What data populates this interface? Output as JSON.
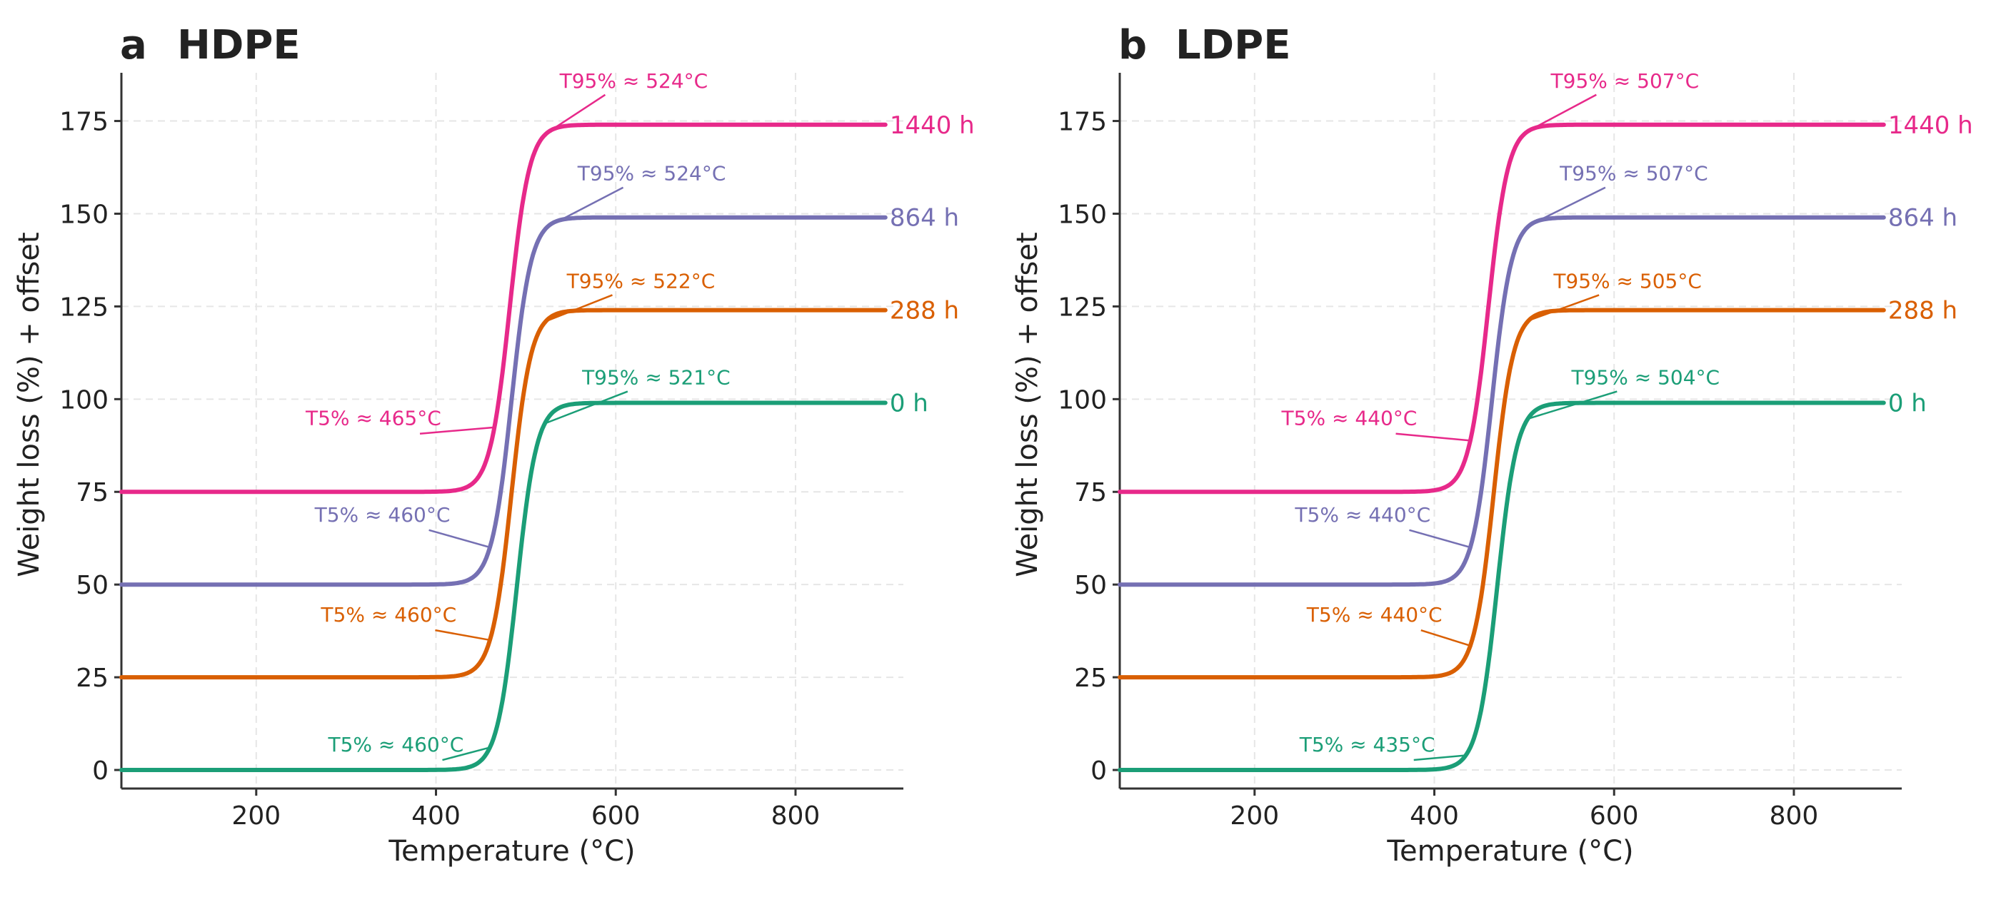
{
  "chart_data": [
    {
      "type": "line",
      "panel_letter": "a",
      "title": "HDPE",
      "xlabel": "Temperature (°C)",
      "ylabel": "Weight loss (%) + offset",
      "xlim": [
        50,
        920
      ],
      "ylim": [
        -5,
        188
      ],
      "xticks": [
        200,
        400,
        600,
        800
      ],
      "xtick_labels": [
        "200",
        "400",
        "600",
        "800"
      ],
      "yticks": [
        0,
        25,
        50,
        75,
        100,
        125,
        150,
        175
      ],
      "ytick_labels": [
        "0",
        "25",
        "50",
        "75",
        "100",
        "125",
        "150",
        "175"
      ],
      "grid": true,
      "series": [
        {
          "name": "0 h",
          "offset": 0,
          "color": "#1b9e77",
          "t50": 490,
          "width": 11,
          "t5_label": "T5% ≈ 460°C",
          "t5_value": 460,
          "t5_text_at": [
            280,
            5
          ],
          "t95_label": "T95% ≈ 521°C",
          "t95_value": 521,
          "t95_text_at": [
            645,
            104
          ]
        },
        {
          "name": "288 h",
          "offset": 25,
          "color": "#d95f02",
          "t50": 484,
          "width": 11,
          "t5_label": "T5% ≈ 460°C",
          "t5_value": 460,
          "t5_text_at": [
            272,
            40
          ],
          "t95_label": "T95% ≈ 522°C",
          "t95_value": 522,
          "t95_text_at": [
            628,
            130
          ]
        },
        {
          "name": "864 h",
          "offset": 50,
          "color": "#7570b3",
          "t50": 484,
          "width": 11,
          "t5_label": "T5% ≈ 460°C",
          "t5_value": 460,
          "t5_text_at": [
            265,
            67
          ],
          "t95_label": "T95% ≈ 524°C",
          "t95_value": 524,
          "t95_text_at": [
            640,
            159
          ]
        },
        {
          "name": "1440 h",
          "offset": 75,
          "color": "#e7298a",
          "t50": 482,
          "width": 11,
          "t5_label": "T5% ≈ 465°C",
          "t5_value": 465,
          "t5_text_at": [
            255,
            93
          ],
          "t95_label": "T95% ≈ 524°C",
          "t95_value": 524,
          "t95_text_at": [
            620,
            184
          ]
        }
      ]
    },
    {
      "type": "line",
      "panel_letter": "b",
      "title": "LDPE",
      "xlabel": "Temperature (°C)",
      "ylabel": "Weight loss (%) + offset",
      "xlim": [
        50,
        920
      ],
      "ylim": [
        -5,
        188
      ],
      "xticks": [
        200,
        400,
        600,
        800
      ],
      "xtick_labels": [
        "200",
        "400",
        "600",
        "800"
      ],
      "yticks": [
        0,
        25,
        50,
        75,
        100,
        125,
        150,
        175
      ],
      "ytick_labels": [
        "0",
        "25",
        "50",
        "75",
        "100",
        "125",
        "150",
        "175"
      ],
      "grid": true,
      "series": [
        {
          "name": "0 h",
          "offset": 0,
          "color": "#1b9e77",
          "t50": 470,
          "width": 11,
          "t5_label": "T5% ≈ 435°C",
          "t5_value": 435,
          "t5_text_at": [
            250,
            5
          ],
          "t95_label": "T95% ≈ 504°C",
          "t95_value": 504,
          "t95_text_at": [
            635,
            104
          ]
        },
        {
          "name": "288 h",
          "offset": 25,
          "color": "#d95f02",
          "t50": 466,
          "width": 11,
          "t5_label": "T5% ≈ 440°C",
          "t5_value": 440,
          "t5_text_at": [
            258,
            40
          ],
          "t95_label": "T95% ≈ 505°C",
          "t95_value": 505,
          "t95_text_at": [
            615,
            130
          ]
        },
        {
          "name": "864 h",
          "offset": 50,
          "color": "#7570b3",
          "t50": 464,
          "width": 11,
          "t5_label": "T5% ≈ 440°C",
          "t5_value": 440,
          "t5_text_at": [
            245,
            67
          ],
          "t95_label": "T95% ≈ 507°C",
          "t95_value": 507,
          "t95_text_at": [
            622,
            159
          ]
        },
        {
          "name": "1440 h",
          "offset": 75,
          "color": "#e7298a",
          "t50": 460,
          "width": 11,
          "t5_label": "T5% ≈ 440°C",
          "t5_value": 440,
          "t5_text_at": [
            230,
            93
          ],
          "t95_label": "T95% ≈ 507°C",
          "t95_value": 507,
          "t95_text_at": [
            612,
            184
          ]
        }
      ]
    }
  ]
}
